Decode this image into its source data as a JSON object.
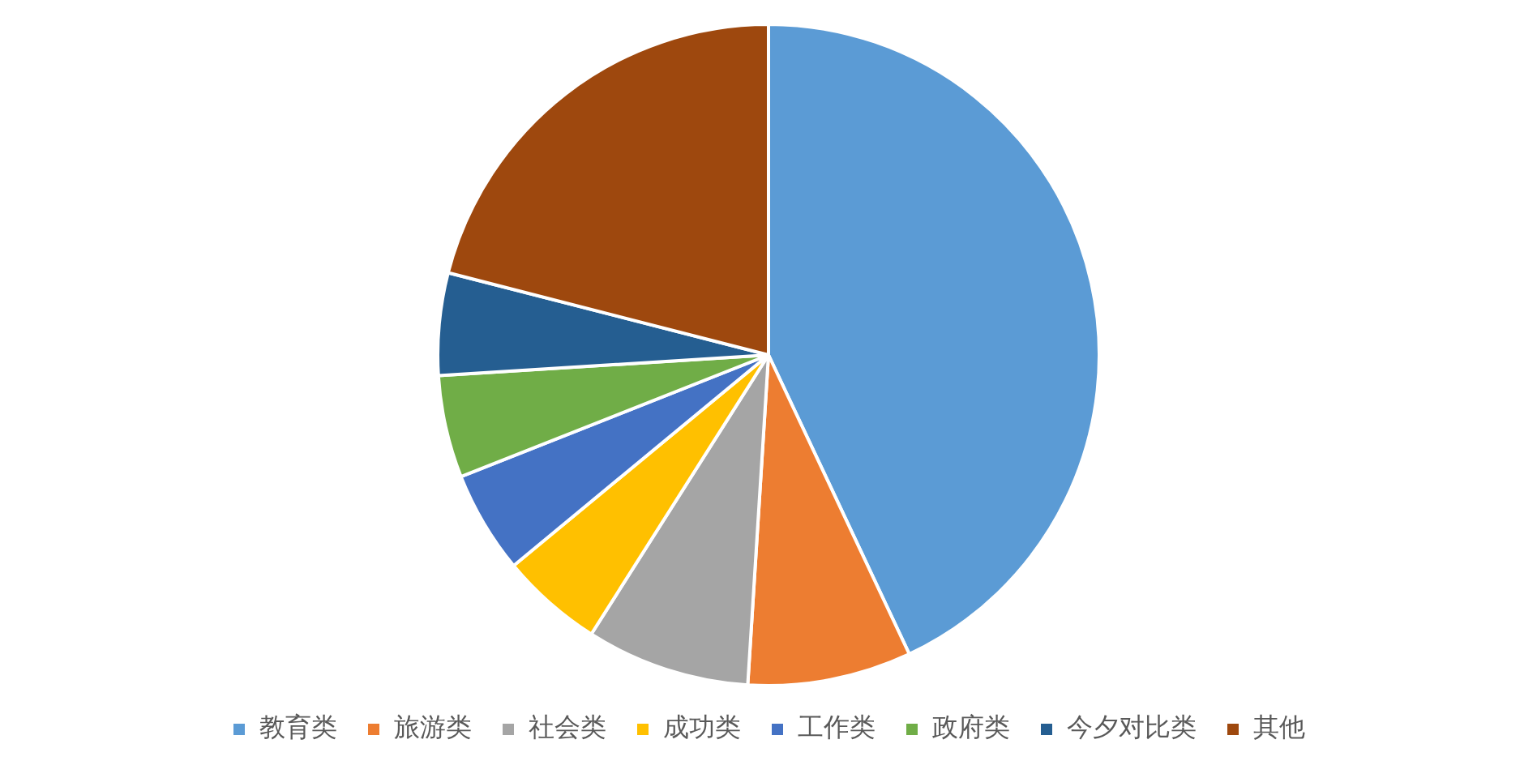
{
  "chart_data": {
    "type": "pie",
    "categories": [
      "教育类",
      "旅游类",
      "社会类",
      "成功类",
      "工作类",
      "政府类",
      "今夕对比类",
      "其他"
    ],
    "values": [
      43,
      8,
      8,
      5,
      5,
      5,
      5,
      21
    ],
    "colors": [
      "#5b9bd5",
      "#ed7d31",
      "#a5a5a5",
      "#ffc000",
      "#4472c4",
      "#70ad47",
      "#255e91",
      "#9e480e"
    ],
    "legend": "bottom"
  }
}
